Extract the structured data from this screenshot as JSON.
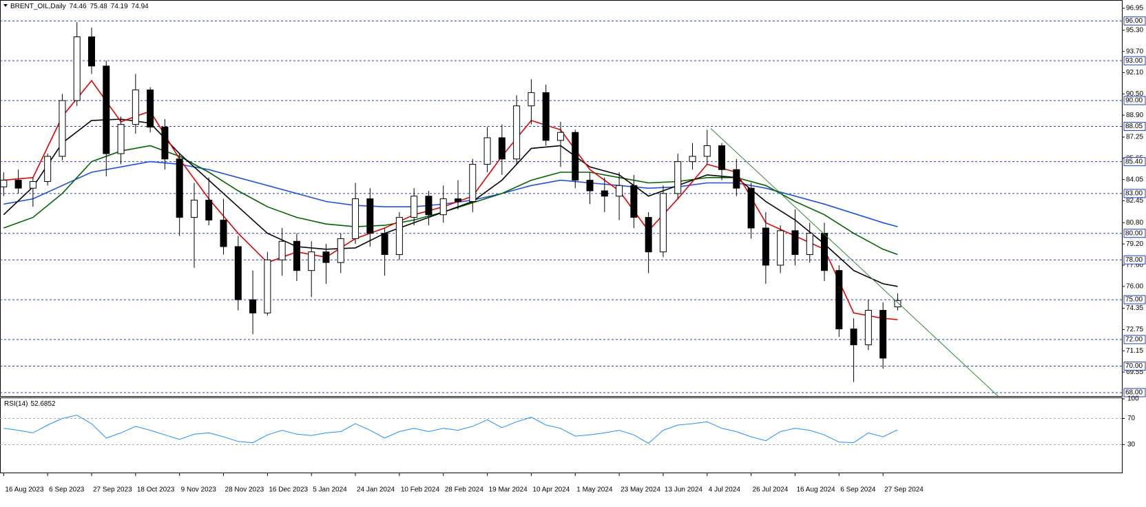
{
  "chart_data": [
    {
      "type": "candlestick",
      "title": "BRENT_OIL,Daily",
      "x": [
        0,
        5,
        10,
        15,
        20,
        25,
        30,
        35,
        40,
        45,
        50,
        55,
        60,
        65,
        70,
        75,
        80,
        85,
        90,
        95,
        100,
        105,
        110,
        115,
        120,
        125,
        130,
        135,
        140,
        145,
        150,
        155,
        160,
        165,
        170,
        175,
        180,
        185,
        190,
        195,
        200,
        205,
        210,
        215,
        220,
        225,
        230,
        235,
        240,
        245,
        250,
        255,
        260,
        265,
        270,
        275,
        280,
        285,
        290,
        295,
        300,
        305
      ],
      "open": [
        83.5,
        84.0,
        83.4,
        83.9,
        85.8,
        90.0,
        94.8,
        92.6,
        86.0,
        88.2,
        90.8,
        88.0,
        85.6,
        81.2,
        82.5,
        81.0,
        79.0,
        75.0,
        74.0,
        78.0,
        79.4,
        77.2,
        78.6,
        77.8,
        79.6,
        82.6,
        80.0,
        78.4,
        81.2,
        82.8,
        81.4,
        82.6,
        82.4,
        85.2,
        87.2,
        85.6,
        89.6,
        90.6,
        87.0,
        87.6,
        84.0,
        83.2,
        82.8,
        83.6,
        81.2,
        78.6,
        83.0,
        85.4,
        85.8,
        86.6,
        84.8,
        83.4,
        80.4,
        77.6,
        80.2,
        78.4,
        80.0,
        77.2,
        72.8,
        71.6,
        74.2,
        74.46
      ],
      "high": [
        84.6,
        84.8,
        84.2,
        86.0,
        90.5,
        95.9,
        95.5,
        93.0,
        88.8,
        92.0,
        91.0,
        88.6,
        86.0,
        83.8,
        84.2,
        82.6,
        79.8,
        77.2,
        78.6,
        80.4,
        80.0,
        79.4,
        79.2,
        80.0,
        83.8,
        83.4,
        80.4,
        81.6,
        83.4,
        83.2,
        83.6,
        84.0,
        85.6,
        88.0,
        88.2,
        90.4,
        91.6,
        91.2,
        88.4,
        87.8,
        84.6,
        84.2,
        84.6,
        84.4,
        81.6,
        83.6,
        86.0,
        86.8,
        87.8,
        86.8,
        85.6,
        83.8,
        81.6,
        80.6,
        81.8,
        80.8,
        80.8,
        77.6,
        73.6,
        75.0,
        74.8,
        75.48
      ],
      "low": [
        82.8,
        83.0,
        82.0,
        83.6,
        85.5,
        89.6,
        92.0,
        84.3,
        85.2,
        87.5,
        87.6,
        84.8,
        79.8,
        77.4,
        80.6,
        78.4,
        74.2,
        72.4,
        73.8,
        76.8,
        76.4,
        75.2,
        76.2,
        77.0,
        79.2,
        79.0,
        76.8,
        78.0,
        80.6,
        80.6,
        80.8,
        81.8,
        81.6,
        84.6,
        84.4,
        85.2,
        88.2,
        86.6,
        85.0,
        83.4,
        82.2,
        81.6,
        81.0,
        80.4,
        77.0,
        78.2,
        82.6,
        84.8,
        85.2,
        84.0,
        82.8,
        79.6,
        76.2,
        77.0,
        77.6,
        77.8,
        76.4,
        72.2,
        68.8,
        71.2,
        69.8,
        74.19
      ],
      "close": [
        84.0,
        83.4,
        83.9,
        85.8,
        90.0,
        94.8,
        92.6,
        86.0,
        88.2,
        90.8,
        88.0,
        85.6,
        81.2,
        82.5,
        81.0,
        79.0,
        75.0,
        74.0,
        78.0,
        79.4,
        77.2,
        78.6,
        77.8,
        79.6,
        82.6,
        80.0,
        78.4,
        81.2,
        82.8,
        81.4,
        82.6,
        82.4,
        85.2,
        87.2,
        85.6,
        89.6,
        90.6,
        87.0,
        87.6,
        84.0,
        83.2,
        82.8,
        83.6,
        81.2,
        78.6,
        83.0,
        85.4,
        85.8,
        86.6,
        84.8,
        83.4,
        80.4,
        77.6,
        80.2,
        78.4,
        80.0,
        77.2,
        72.8,
        71.6,
        74.2,
        70.6,
        74.94
      ],
      "up_color": "#ffffff",
      "down_color": "#000000",
      "outline_color": "#000000",
      "lines": [
        {
          "color": "#2050e0",
          "x": [
            0,
            10,
            20,
            30,
            40,
            50,
            60,
            70,
            80,
            90,
            100,
            110,
            120,
            130,
            140,
            150,
            160,
            170,
            180,
            190,
            200,
            210,
            220,
            230,
            240,
            250,
            260,
            270,
            280,
            290,
            300,
            305
          ],
          "values": [
            82.2,
            82.6,
            83.6,
            84.6,
            85.0,
            85.4,
            85.2,
            84.8,
            84.2,
            83.6,
            83.0,
            82.4,
            82.1,
            82.0,
            82.0,
            82.2,
            82.5,
            83.0,
            83.6,
            84.0,
            83.8,
            83.6,
            83.4,
            83.5,
            83.8,
            83.8,
            83.4,
            82.8,
            82.2,
            81.5,
            80.8,
            80.5
          ]
        },
        {
          "color": "#006400",
          "x": [
            0,
            10,
            20,
            30,
            40,
            50,
            60,
            70,
            80,
            90,
            100,
            110,
            120,
            130,
            140,
            150,
            160,
            170,
            180,
            190,
            200,
            210,
            220,
            230,
            240,
            250,
            260,
            270,
            280,
            290,
            300,
            305
          ],
          "values": [
            80.4,
            81.2,
            83.0,
            85.4,
            86.2,
            86.6,
            85.8,
            84.6,
            83.2,
            82.0,
            81.2,
            80.7,
            80.5,
            80.6,
            81.0,
            81.6,
            82.3,
            83.0,
            84.0,
            84.6,
            84.6,
            84.2,
            83.8,
            83.9,
            84.2,
            84.2,
            83.6,
            82.4,
            81.4,
            80.0,
            78.8,
            78.4
          ]
        },
        {
          "color": "#000000",
          "x": [
            0,
            10,
            20,
            30,
            40,
            50,
            60,
            70,
            80,
            90,
            100,
            110,
            120,
            130,
            140,
            150,
            160,
            170,
            180,
            190,
            200,
            210,
            220,
            230,
            240,
            250,
            260,
            270,
            280,
            290,
            300,
            305
          ],
          "values": [
            81.4,
            83.5,
            86.8,
            88.5,
            88.6,
            88.3,
            86.0,
            84.0,
            82.0,
            80.0,
            79.0,
            78.8,
            78.9,
            80.0,
            80.8,
            81.6,
            82.4,
            84.0,
            86.4,
            86.6,
            85.0,
            84.4,
            82.8,
            83.6,
            84.4,
            84.2,
            82.4,
            81.0,
            79.2,
            77.2,
            76.2,
            76.0
          ]
        },
        {
          "color": "#e00000",
          "x": [
            0,
            10,
            20,
            30,
            40,
            50,
            60,
            70,
            80,
            90,
            100,
            110,
            120,
            130,
            140,
            150,
            160,
            170,
            180,
            190,
            200,
            210,
            220,
            230,
            240,
            250,
            260,
            270,
            280,
            290,
            300,
            305
          ],
          "values": [
            84.0,
            84.2,
            88.8,
            91.5,
            88.4,
            89.2,
            85.6,
            82.6,
            80.0,
            77.8,
            78.6,
            78.2,
            79.6,
            80.4,
            81.4,
            82.0,
            82.8,
            85.8,
            88.5,
            87.8,
            84.8,
            83.2,
            80.2,
            82.6,
            85.2,
            84.6,
            80.8,
            79.8,
            78.8,
            74.0,
            73.6,
            73.5
          ]
        }
      ],
      "trendline": {
        "color": "#2e8b2e",
        "x": [
          241.25,
          339.25
        ],
        "values": [
          87.9,
          67.74
        ]
      },
      "xlim": [
        -1.25,
        381.5
      ],
      "ylim": [
        67.74,
        97.47
      ],
      "yticks": [
        96.95,
        {
          "value": 95.3,
          "label": "95.30"
        },
        {
          "value": 93.7,
          "label": "93.70"
        },
        {
          "value": 92.1,
          "label": "92.10"
        },
        {
          "value": 90.5,
          "label": "90.50"
        },
        {
          "value": 88.9,
          "label": "88.90"
        },
        87.25,
        85.65,
        84.05,
        82.45,
        {
          "value": 80.8,
          "label": "80.80"
        },
        {
          "value": 79.2,
          "label": "79.20"
        },
        {
          "value": 77.6,
          "label": "77.60"
        },
        {
          "value": 76,
          "label": "76.00"
        },
        74.35,
        72.75,
        71.15,
        69.55
      ],
      "levels": [
        {
          "value": 96,
          "label": "96.00"
        },
        {
          "value": 93,
          "label": "93.00"
        },
        {
          "value": 90,
          "label": "90.00"
        },
        88.05,
        {
          "value": 85.4,
          "label": "85.40"
        },
        {
          "value": 83,
          "label": "83.00"
        },
        {
          "value": 80,
          "label": "80.00"
        },
        {
          "value": 78,
          "label": "78.00"
        },
        {
          "value": 75,
          "label": "75.00"
        },
        {
          "value": 72,
          "label": "72.00"
        },
        {
          "value": 70,
          "label": "70.00"
        },
        {
          "value": 68,
          "label": "68.00"
        }
      ],
      "level_color": "#1f3fbf",
      "xticks": [
        {
          "value": 0,
          "label": "16 Aug 2023"
        },
        {
          "value": 15,
          "label": "6 Sep 2023"
        },
        {
          "value": 30,
          "label": "27 Sep 2023"
        },
        {
          "value": 45,
          "label": "18 Oct 2023"
        },
        {
          "value": 60,
          "label": "9 Nov 2023"
        },
        {
          "value": 75,
          "label": "28 Nov 2023"
        },
        {
          "value": 90,
          "label": "16 Dec 2023"
        },
        {
          "value": 105,
          "label": "5 Jan 2024"
        },
        {
          "value": 120,
          "label": "24 Jan 2024"
        },
        {
          "value": 135,
          "label": "10 Feb 2024"
        },
        {
          "value": 150,
          "label": "28 Feb 2024"
        },
        {
          "value": 165,
          "label": "19 Mar 2024"
        },
        {
          "value": 180,
          "label": "10 Apr 2024"
        },
        {
          "value": 195,
          "label": "1 May 2024"
        },
        {
          "value": 210,
          "label": "23 May 2024"
        },
        {
          "value": 225,
          "label": "13 Jun 2024"
        },
        {
          "value": 240,
          "label": "4 Jul 2024"
        },
        {
          "value": 255,
          "label": "26 Jul 2024"
        },
        {
          "value": 270,
          "label": "16 Aug 2024"
        },
        {
          "value": 285,
          "label": "6 Sep 2024"
        },
        {
          "value": 300,
          "label": "27 Sep 2024"
        }
      ]
    },
    {
      "type": "line",
      "title": "RSI(14)",
      "color": "#1e90ff",
      "x": [
        0,
        5,
        10,
        15,
        20,
        25,
        30,
        35,
        40,
        45,
        50,
        55,
        60,
        65,
        70,
        75,
        80,
        85,
        90,
        95,
        100,
        105,
        110,
        115,
        120,
        125,
        130,
        135,
        140,
        145,
        150,
        155,
        160,
        165,
        170,
        175,
        180,
        185,
        190,
        195,
        200,
        205,
        210,
        215,
        220,
        225,
        230,
        235,
        240,
        245,
        250,
        255,
        260,
        265,
        270,
        275,
        280,
        285,
        290,
        295,
        300,
        305
      ],
      "values": [
        55,
        52,
        48,
        60,
        70,
        75,
        62,
        40,
        48,
        58,
        52,
        45,
        38,
        46,
        48,
        42,
        35,
        33,
        45,
        52,
        46,
        44,
        48,
        50,
        62,
        52,
        40,
        50,
        55,
        50,
        55,
        52,
        58,
        68,
        56,
        65,
        72,
        60,
        55,
        43,
        45,
        48,
        52,
        45,
        32,
        52,
        60,
        62,
        65,
        55,
        50,
        42,
        36,
        50,
        55,
        52,
        45,
        34,
        33,
        48,
        42,
        52.6852
      ],
      "ylim": [
        0,
        100
      ],
      "yticks": [
        100,
        70,
        30
      ]
    }
  ]
}
